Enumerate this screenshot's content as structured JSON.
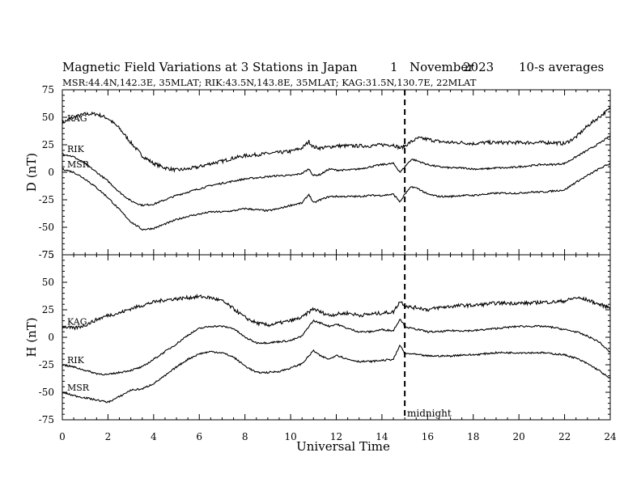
{
  "title": {
    "main": "Magnetic Field Variations at 3 Stations in Japan",
    "day": "1",
    "month": "November",
    "year": "2023",
    "averaging": "10-s averages"
  },
  "subtitle": "MSR:44.4N,142.3E, 35MLAT;  RIK:43.5N,143.8E, 35MLAT;  KAG:31.5N,130.7E, 22MLAT",
  "chart_data": [
    {
      "type": "line",
      "ylabel": "D (nT)",
      "xlim": [
        0,
        24
      ],
      "ylim": [
        -75,
        75
      ],
      "yticks": [
        "75",
        "50",
        "25",
        "0",
        "-25",
        "-50",
        "-75"
      ],
      "x": [
        0,
        0.5,
        1,
        1.5,
        2,
        2.5,
        3,
        3.5,
        4,
        4.5,
        5,
        5.5,
        6,
        6.5,
        7,
        7.5,
        8,
        8.5,
        9,
        9.5,
        10,
        10.5,
        10.8,
        11,
        11.3,
        11.7,
        12,
        12.5,
        13,
        13.5,
        14,
        14.5,
        14.8,
        15,
        15.3,
        15.6,
        16,
        16.5,
        17,
        17.5,
        18,
        18.5,
        19,
        19.5,
        20,
        20.5,
        21,
        21.5,
        22,
        22.5,
        23,
        23.5,
        24
      ],
      "series": [
        {
          "name": "KAG",
          "values": [
            45,
            50,
            53,
            53,
            49,
            40,
            27,
            15,
            8,
            4,
            2,
            3,
            5,
            8,
            10,
            13,
            15,
            16,
            17,
            18,
            19,
            22,
            28,
            23,
            22,
            23,
            24,
            24,
            24,
            24,
            25,
            25,
            22,
            24,
            28,
            31,
            30,
            28,
            27,
            27,
            26,
            27,
            27,
            27,
            27,
            27,
            27,
            27,
            26,
            32,
            42,
            50,
            58
          ]
        },
        {
          "name": "RIK",
          "values": [
            17,
            14,
            8,
            0,
            -8,
            -18,
            -26,
            -30,
            -29,
            -25,
            -21,
            -18,
            -15,
            -12,
            -10,
            -8,
            -6,
            -5,
            -4,
            -3,
            -3,
            -1,
            3,
            -3,
            -2,
            3,
            2,
            2,
            3,
            5,
            7,
            8,
            0,
            5,
            12,
            10,
            7,
            5,
            4,
            4,
            3,
            3,
            4,
            4,
            5,
            6,
            7,
            7,
            8,
            14,
            20,
            26,
            33
          ]
        },
        {
          "name": "MSR",
          "values": [
            3,
            0,
            -6,
            -14,
            -23,
            -34,
            -45,
            -52,
            -51,
            -47,
            -43,
            -40,
            -38,
            -36,
            -36,
            -35,
            -33,
            -34,
            -35,
            -33,
            -30,
            -28,
            -20,
            -28,
            -25,
            -22,
            -22,
            -22,
            -22,
            -21,
            -21,
            -20,
            -27,
            -20,
            -13,
            -15,
            -20,
            -22,
            -22,
            -21,
            -21,
            -20,
            -19,
            -19,
            -19,
            -18,
            -18,
            -17,
            -16,
            -9,
            -3,
            3,
            8
          ]
        }
      ]
    },
    {
      "type": "line",
      "ylabel": "H (nT)",
      "xlabel": "Universal Time",
      "xlim": [
        0,
        24
      ],
      "ylim": [
        -75,
        75
      ],
      "yticks": [
        "75",
        "50",
        "25",
        "0",
        "-25",
        "-50",
        "-75"
      ],
      "xticks": [
        "0",
        "2",
        "4",
        "6",
        "8",
        "10",
        "12",
        "14",
        "16",
        "18",
        "20",
        "22",
        "24"
      ],
      "x": [
        0,
        0.5,
        1,
        1.5,
        2,
        2.5,
        3,
        3.5,
        4,
        4.5,
        5,
        5.5,
        6,
        6.5,
        7,
        7.5,
        8,
        8.5,
        9,
        9.5,
        10,
        10.5,
        10.8,
        11,
        11.3,
        11.7,
        12,
        12.5,
        13,
        13.5,
        14,
        14.5,
        14.8,
        15,
        15.3,
        15.6,
        16,
        16.5,
        17,
        17.5,
        18,
        18.5,
        19,
        19.5,
        20,
        20.5,
        21,
        21.5,
        22,
        22.5,
        23,
        23.5,
        24
      ],
      "series": [
        {
          "name": "KAG",
          "values": [
            10,
            8,
            11,
            16,
            20,
            22,
            26,
            29,
            32,
            34,
            35,
            36,
            37,
            36,
            33,
            26,
            18,
            13,
            11,
            13,
            15,
            18,
            23,
            26,
            23,
            20,
            21,
            22,
            20,
            21,
            22,
            23,
            33,
            29,
            27,
            27,
            25,
            27,
            28,
            29,
            29,
            30,
            31,
            31,
            31,
            31,
            32,
            32,
            33,
            36,
            34,
            30,
            27
          ]
        },
        {
          "name": "RIK",
          "values": [
            -25,
            -27,
            -30,
            -33,
            -34,
            -32,
            -30,
            -27,
            -20,
            -13,
            -6,
            2,
            8,
            10,
            10,
            8,
            0,
            -5,
            -5,
            -4,
            -3,
            1,
            10,
            15,
            13,
            10,
            12,
            8,
            5,
            5,
            7,
            6,
            17,
            10,
            8,
            7,
            5,
            5,
            6,
            6,
            6,
            7,
            8,
            9,
            10,
            10,
            10,
            9,
            7,
            5,
            1,
            -4,
            -14
          ]
        },
        {
          "name": "MSR",
          "values": [
            -50,
            -53,
            -55,
            -57,
            -59,
            -54,
            -48,
            -47,
            -42,
            -35,
            -27,
            -20,
            -15,
            -13,
            -14,
            -18,
            -26,
            -32,
            -32,
            -31,
            -28,
            -24,
            -17,
            -12,
            -17,
            -20,
            -16,
            -20,
            -22,
            -22,
            -21,
            -20,
            -7,
            -15,
            -15,
            -16,
            -17,
            -17,
            -17,
            -16,
            -16,
            -15,
            -14,
            -14,
            -14,
            -14,
            -14,
            -15,
            -16,
            -19,
            -24,
            -30,
            -38
          ]
        }
      ]
    }
  ],
  "marker": {
    "x": 15,
    "label": "midnight"
  }
}
